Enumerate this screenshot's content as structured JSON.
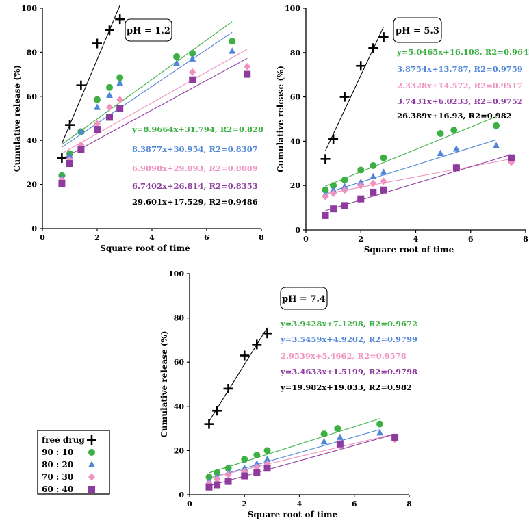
{
  "colors": {
    "free_drug": "#000000",
    "r90_10": "#3cb043",
    "r80_20": "#4f86d9",
    "r70_30": "#ef92c0",
    "r60_40": "#8e3b9e"
  },
  "legend": {
    "items": [
      {
        "key": "free_drug",
        "label": "free drug",
        "marker": "plus"
      },
      {
        "key": "r90_10",
        "label": "90 : 10",
        "marker": "circle"
      },
      {
        "key": "r80_20",
        "label": "80 : 20",
        "marker": "triangle"
      },
      {
        "key": "r70_30",
        "label": "70 : 30",
        "marker": "diamond"
      },
      {
        "key": "r60_40",
        "label": "60 : 40",
        "marker": "square"
      }
    ]
  },
  "chart_data": [
    {
      "type": "scatter",
      "id": "ph12",
      "title": "pH = 1.2",
      "xlabel": "Square root of time",
      "ylabel": "Cumulative release (%)",
      "xlim": [
        0,
        8
      ],
      "ylim": [
        0,
        100
      ],
      "xticks": [
        0,
        2,
        4,
        6,
        8
      ],
      "yticks": [
        0,
        20,
        40,
        60,
        80,
        100
      ],
      "series": [
        {
          "key": "free_drug",
          "name": "free drug",
          "x": [
            0.71,
            1.0,
            1.41,
            2.0,
            2.45,
            2.83
          ],
          "y": [
            32,
            47,
            65,
            84,
            90,
            95
          ],
          "fit": {
            "slope": 29.601,
            "intercept": 17.529,
            "x_range": [
              0.71,
              2.83
            ]
          },
          "equation": "29.601x+17.529, R2=0.9486"
        },
        {
          "key": "r90_10",
          "name": "90 : 10",
          "x": [
            0.71,
            1.0,
            1.41,
            2.0,
            2.45,
            2.83,
            4.9,
            5.48,
            6.93
          ],
          "y": [
            24,
            34,
            44,
            58.5,
            64,
            68.5,
            78,
            79.5,
            85
          ],
          "fit": {
            "slope": 8.9664,
            "intercept": 31.794,
            "x_range": [
              0.71,
              6.93
            ]
          },
          "equation": "y=8.9664x+31.794, R2=0.828"
        },
        {
          "key": "r80_20",
          "name": "80 : 20",
          "x": [
            0.71,
            1.0,
            1.41,
            2.0,
            2.45,
            2.83,
            4.9,
            5.48,
            6.93
          ],
          "y": [
            23,
            33,
            44,
            55,
            60.5,
            66,
            75,
            77,
            80.5
          ],
          "fit": {
            "slope": 8.3877,
            "intercept": 30.954,
            "x_range": [
              0.71,
              6.93
            ]
          },
          "equation": "8.3877x+30.954, R2=0.8307"
        },
        {
          "key": "r70_30",
          "name": "70 : 30",
          "x": [
            0.71,
            1.0,
            1.41,
            2.0,
            2.45,
            2.83,
            5.48,
            7.48
          ],
          "y": [
            22,
            31,
            38,
            47.5,
            55,
            58.5,
            71,
            73.5
          ],
          "fit": {
            "slope": 6.9898,
            "intercept": 29.093,
            "x_range": [
              0.71,
              7.48
            ]
          },
          "equation": "6.9898x+29.093, R2=0.8089"
        },
        {
          "key": "r60_40",
          "name": "60 : 40",
          "x": [
            0.71,
            1.0,
            1.41,
            2.0,
            2.45,
            2.83,
            5.48,
            7.48
          ],
          "y": [
            20.5,
            29.5,
            36,
            45,
            50.5,
            54.5,
            67.5,
            70
          ],
          "fit": {
            "slope": 6.7402,
            "intercept": 26.814,
            "x_range": [
              0.71,
              7.48
            ]
          },
          "equation": "6.7402x+26.814, R2=0.8353"
        }
      ]
    },
    {
      "type": "scatter",
      "id": "ph53",
      "title": "pH = 5.3",
      "xlabel": "Square root of time",
      "ylabel": "Cumulative release (%)",
      "xlim": [
        0,
        8
      ],
      "ylim": [
        0,
        100
      ],
      "xticks": [
        0,
        2,
        4,
        6,
        8
      ],
      "yticks": [
        0,
        20,
        40,
        60,
        80,
        100
      ],
      "series": [
        {
          "key": "free_drug",
          "name": "free drug",
          "x": [
            0.71,
            1.0,
            1.41,
            2.0,
            2.45,
            2.83
          ],
          "y": [
            32,
            41,
            60,
            74,
            82,
            87
          ],
          "fit": {
            "slope": 26.389,
            "intercept": 16.93,
            "x_range": [
              0.71,
              2.83
            ]
          },
          "equation": "26.389x+16.93, R2=0.982"
        },
        {
          "key": "r90_10",
          "name": "90 : 10",
          "x": [
            0.71,
            1.0,
            1.41,
            2.0,
            2.45,
            2.83,
            4.9,
            5.39,
            6.93
          ],
          "y": [
            18,
            20,
            22.5,
            27,
            29,
            32.5,
            43.5,
            45,
            47
          ],
          "fit": {
            "slope": 5.0465,
            "intercept": 16.108,
            "x_range": [
              0.71,
              6.93
            ]
          },
          "equation": "y=5.0465x+16.108, R2=0.9642"
        },
        {
          "key": "r80_20",
          "name": "80 : 20",
          "x": [
            0.71,
            1.0,
            1.41,
            2.0,
            2.45,
            2.83,
            4.9,
            5.48,
            6.93
          ],
          "y": [
            16,
            18,
            19.5,
            21.5,
            24,
            26,
            34.5,
            36.5,
            38
          ],
          "fit": {
            "slope": 3.8754,
            "intercept": 13.787,
            "x_range": [
              0.71,
              6.93
            ]
          },
          "equation": "3.8754x+13.787, R2=0.9759"
        },
        {
          "key": "r70_30",
          "name": "70 : 30",
          "x": [
            0.71,
            1.0,
            1.41,
            2.0,
            2.45,
            2.83,
            5.48,
            7.48
          ],
          "y": [
            15,
            16.5,
            18,
            20,
            21,
            22,
            28.5,
            30.5
          ],
          "fit": {
            "slope": 2.3328,
            "intercept": 14.572,
            "x_range": [
              0.71,
              7.48
            ]
          },
          "equation": "2.3328x+14.572, R2=0.9517"
        },
        {
          "key": "r60_40",
          "name": "60 : 40",
          "x": [
            0.71,
            1.0,
            1.41,
            2.0,
            2.45,
            2.83,
            5.48,
            7.48
          ],
          "y": [
            6.5,
            9.5,
            11,
            14,
            17,
            18,
            28,
            32.5
          ],
          "fit": {
            "slope": 3.7431,
            "intercept": 6.0233,
            "x_range": [
              0.71,
              7.48
            ]
          },
          "equation": "3.7431x+6.0233, R2=0.9752"
        }
      ]
    },
    {
      "type": "scatter",
      "id": "ph74",
      "title": "pH = 7.4",
      "xlabel": "Square root of time",
      "ylabel": "Cumulative release (%)",
      "xlim": [
        0,
        8
      ],
      "ylim": [
        0,
        100
      ],
      "xticks": [
        0,
        2,
        4,
        6,
        8
      ],
      "yticks": [
        0,
        20,
        40,
        60,
        80,
        100
      ],
      "series": [
        {
          "key": "free_drug",
          "name": "free drug",
          "x": [
            0.71,
            1.0,
            1.41,
            2.0,
            2.45,
            2.83
          ],
          "y": [
            32,
            38,
            48,
            63,
            68,
            73
          ],
          "fit": {
            "slope": 19.982,
            "intercept": 19.033,
            "x_range": [
              0.71,
              2.83
            ]
          },
          "equation": "y=19.982x+19.033, R2=0.982"
        },
        {
          "key": "r90_10",
          "name": "90 : 10",
          "x": [
            0.71,
            1.0,
            1.41,
            2.0,
            2.45,
            2.83,
            4.9,
            5.39,
            6.93
          ],
          "y": [
            8,
            10,
            12,
            16,
            18,
            20,
            27.5,
            30,
            32
          ],
          "fit": {
            "slope": 3.9428,
            "intercept": 7.1298,
            "x_range": [
              0.71,
              6.93
            ]
          },
          "equation": "y=3.9428x+7.1298, R2=0.9672"
        },
        {
          "key": "r80_20",
          "name": "80 : 20",
          "x": [
            0.71,
            1.0,
            1.41,
            2.0,
            2.45,
            2.83,
            4.9,
            5.48,
            6.93
          ],
          "y": [
            6,
            8,
            10,
            12,
            14,
            16,
            24,
            26,
            28
          ],
          "fit": {
            "slope": 3.5459,
            "intercept": 4.9202,
            "x_range": [
              0.71,
              6.93
            ]
          },
          "equation": "y=3.5459x+4.9202, R2=0.9799"
        },
        {
          "key": "r70_30",
          "name": "70 : 30",
          "x": [
            0.71,
            1.0,
            1.41,
            2.0,
            2.45,
            2.83,
            5.48,
            7.48
          ],
          "y": [
            5,
            7,
            9,
            10.5,
            12.5,
            14,
            22,
            25
          ],
          "fit": {
            "slope": 2.9539,
            "intercept": 5.4662,
            "x_range": [
              0.71,
              7.48
            ]
          },
          "equation": "2.9539x+5.4662, R2=0.9578"
        },
        {
          "key": "r60_40",
          "name": "60 : 40",
          "x": [
            0.71,
            1.0,
            1.41,
            2.0,
            2.45,
            2.83,
            5.48,
            7.48
          ],
          "y": [
            3.5,
            4.5,
            6,
            8.5,
            10,
            12,
            23,
            26
          ],
          "fit": {
            "slope": 3.4633,
            "intercept": 1.5199,
            "x_range": [
              0.71,
              7.48
            ]
          },
          "equation": "y=3.4633x+1.5199, R2=0.9798"
        }
      ]
    }
  ]
}
